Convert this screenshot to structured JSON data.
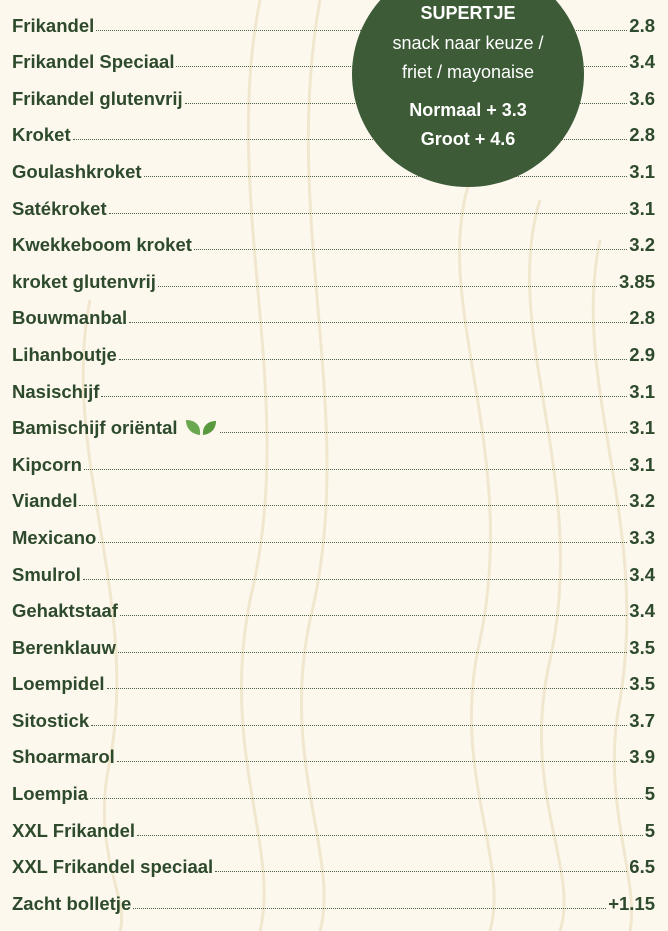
{
  "badge": {
    "title": "SUPERTJE",
    "line1": "snack naar keuze /",
    "line2": "friet / mayonaise",
    "option1": "Normaal + 3.3",
    "option2": "Groot + 4.6"
  },
  "items": [
    {
      "name": "Frikandel",
      "price": "2.8"
    },
    {
      "name": "Frikandel Speciaal",
      "price": "3.4"
    },
    {
      "name": "Frikandel glutenvrij",
      "price": "3.6"
    },
    {
      "name": "Kroket",
      "price": "2.8"
    },
    {
      "name": "Goulashkroket",
      "price": "3.1"
    },
    {
      "name": "Satékroket",
      "price": "3.1"
    },
    {
      "name": "Kwekkeboom kroket",
      "price": "3.2"
    },
    {
      "name": "kroket glutenvrij",
      "price": "3.85"
    },
    {
      "name": "Bouwmanbal",
      "price": "2.8"
    },
    {
      "name": "Lihanboutje",
      "price": "2.9"
    },
    {
      "name": "Nasischijf",
      "price": "3.1"
    },
    {
      "name": "Bamischijf oriëntal",
      "price": "3.1",
      "icon": "leaf"
    },
    {
      "name": "Kipcorn",
      "price": "3.1"
    },
    {
      "name": "Viandel",
      "price": "3.2"
    },
    {
      "name": "Mexicano",
      "price": "3.3"
    },
    {
      "name": "Smulrol",
      "price": "3.4"
    },
    {
      "name": "Gehaktstaaf",
      "price": "3.4"
    },
    {
      "name": "Berenklauw",
      "price": "3.5"
    },
    {
      "name": "Loempidel",
      "price": "3.5"
    },
    {
      "name": "Sitostick",
      "price": "3.7"
    },
    {
      "name": "Shoarmarol",
      "price": "3.9"
    },
    {
      "name": "Loempia",
      "price": "5"
    },
    {
      "name": "XXL Frikandel",
      "price": "5"
    },
    {
      "name": "XXL Frikandel speciaal",
      "price": "6.5"
    },
    {
      "name": "Zacht bolletje",
      "price": "+1.15"
    }
  ]
}
